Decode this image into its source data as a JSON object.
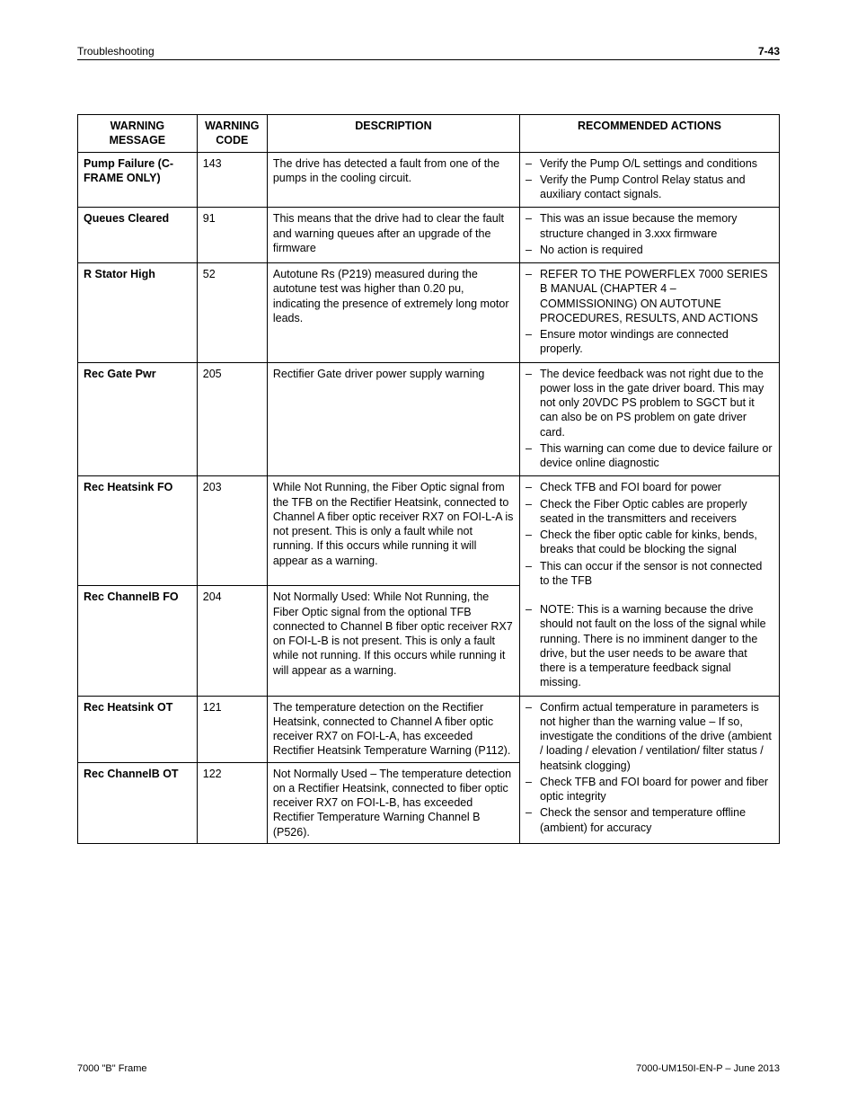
{
  "header": {
    "left": "Troubleshooting",
    "right": "7-43"
  },
  "footer": {
    "left": "7000 \"B\" Frame",
    "right": "7000-UM150I-EN-P – June 2013"
  },
  "table": {
    "columns": [
      "WARNING MESSAGE",
      "WARNING CODE",
      "DESCRIPTION",
      "RECOMMENDED ACTIONS"
    ],
    "rows": [
      {
        "message": "Pump Failure (C-FRAME ONLY)",
        "code": "143",
        "description": "The drive has detected a fault from one of the pumps in the cooling circuit.",
        "actions_mode": "list",
        "action_rowspan": 1,
        "actions": [
          "Verify the Pump O/L settings and conditions",
          "Verify the Pump Control Relay status and auxiliary contact signals."
        ]
      },
      {
        "message": "Queues Cleared",
        "code": "91",
        "description": "This means that the drive had to clear the fault and warning queues after an upgrade of the firmware",
        "actions_mode": "list",
        "action_rowspan": 1,
        "actions": [
          "This was an issue because the memory structure changed in 3.xxx firmware",
          "No action is required"
        ]
      },
      {
        "message": "R Stator High",
        "code": "52",
        "description": "Autotune Rs (P219) measured during the autotune test was higher than 0.20 pu, indicating the presence of extremely long motor leads.",
        "actions_mode": "list",
        "action_rowspan": 1,
        "actions": [
          "REFER TO THE POWERFLEX 7000 SERIES B MANUAL (CHAPTER 4 – COMMISSIONING) ON AUTOTUNE PROCEDURES, RESULTS, AND ACTIONS",
          "Ensure motor windings are connected properly."
        ]
      },
      {
        "message": "Rec Gate Pwr",
        "code": "205",
        "description": "Rectifier Gate driver power supply warning",
        "actions_mode": "list",
        "action_rowspan": 1,
        "actions": [
          "The device feedback was not right due to the power loss in the gate driver board. This may not only 20VDC PS problem to SGCT but it can also be on PS problem on gate driver card.",
          "This warning can come due to device failure or device online diagnostic"
        ]
      },
      {
        "message": "Rec Heatsink FO",
        "code": "203",
        "description": "While Not Running, the Fiber Optic signal from the TFB on the Rectifier Heatsink, connected to Channel A fiber optic receiver RX7 on FOI-L-A is not present.  This is only a fault while not running.  If this occurs while running it will appear as a warning.",
        "actions_mode": "mixed",
        "action_rowspan": 2,
        "action_blocks": [
          {
            "kind": "li",
            "text": "Check TFB and FOI board for power"
          },
          {
            "kind": "li",
            "text": "Check the Fiber Optic cables are properly seated in the transmitters and receivers"
          },
          {
            "kind": "li",
            "text": "Check the fiber optic cable for kinks, bends, breaks that could be blocking the signal"
          },
          {
            "kind": "li",
            "text": "This can occur if the sensor is not connected to the TFB"
          },
          {
            "kind": "spacer"
          },
          {
            "kind": "li",
            "text": "NOTE: This is a warning because the drive should not fault on the loss of the signal while running.  There is no imminent danger to the drive, but the user needs to be aware that there is a temperature feedback signal missing."
          }
        ]
      },
      {
        "message": "Rec ChannelB FO",
        "code": "204",
        "description": "Not Normally Used:  While Not Running, the Fiber Optic signal from the optional TFB connected to Channel B fiber optic receiver RX7 on FOI-L-B is not present.  This is only a fault while not running.  If this occurs while running it will appear as a warning.",
        "actions_mode": "merged"
      },
      {
        "message": "Rec Heatsink OT",
        "code": "121",
        "description": "The temperature detection on the Rectifier Heatsink, connected to Channel A fiber optic receiver RX7 on FOI-L-A, has exceeded Rectifier Heatsink Temperature Warning (P112).",
        "actions_mode": "list",
        "action_rowspan": 2,
        "actions": [
          "Confirm actual temperature in parameters is not higher than the warning value – If so, investigate the conditions of the drive (ambient / loading / elevation / ventilation/ filter status / heatsink clogging)",
          "Check TFB and FOI board for power and fiber optic integrity",
          "Check the sensor and temperature offline (ambient) for accuracy"
        ]
      },
      {
        "message": "Rec ChannelB OT",
        "code": "122",
        "description": "Not Normally Used – The temperature detection on a Rectifier Heatsink, connected to fiber optic receiver RX7 on FOI-L-B, has exceeded Rectifier Temperature Warning Channel B (P526).",
        "actions_mode": "merged"
      }
    ]
  }
}
